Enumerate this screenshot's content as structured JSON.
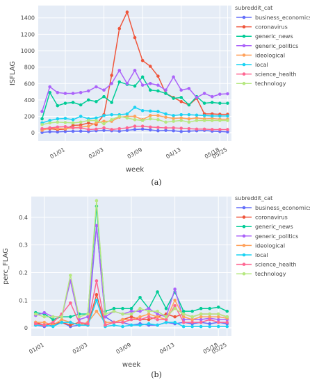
{
  "chart_data": [
    {
      "type": "line",
      "panel_label": "(a)",
      "xlabel": "week",
      "ylabel": "ISFLAG",
      "ylim": [
        -100,
        1550
      ],
      "yticks": [
        0,
        200,
        400,
        600,
        800,
        1000,
        1200,
        1400
      ],
      "x_tick_labels": [
        "01/01",
        "02/03",
        "03/09",
        "04/13",
        "05/18",
        "05/25"
      ],
      "x_tick_positions": [
        3,
        8,
        13,
        18,
        23,
        24
      ],
      "x_range": [
        -0.5,
        24.5
      ],
      "legend_title": "subreddit_cat",
      "legend_position": "right",
      "grid": true,
      "series": [
        {
          "name": "business_economics",
          "color": "#636efa",
          "values": [
            5,
            12,
            10,
            15,
            18,
            20,
            15,
            25,
            30,
            25,
            20,
            30,
            40,
            45,
            35,
            25,
            30,
            25,
            15,
            20,
            25,
            30,
            20,
            15,
            10
          ]
        },
        {
          "name": "coronavirus",
          "color": "#ef553b",
          "values": [
            40,
            50,
            40,
            45,
            90,
            95,
            120,
            100,
            220,
            700,
            1270,
            1470,
            1160,
            880,
            810,
            690,
            480,
            430,
            380,
            340,
            420,
            230,
            230,
            225,
            225
          ]
        },
        {
          "name": "generic_news",
          "color": "#00cc96",
          "values": [
            170,
            490,
            330,
            360,
            370,
            340,
            400,
            380,
            440,
            370,
            620,
            590,
            570,
            680,
            520,
            510,
            480,
            420,
            430,
            340,
            440,
            360,
            370,
            360,
            360
          ]
        },
        {
          "name": "generic_politics",
          "color": "#ab63fa",
          "values": [
            260,
            560,
            490,
            480,
            480,
            490,
            510,
            560,
            520,
            600,
            760,
            600,
            760,
            580,
            600,
            580,
            520,
            680,
            520,
            540,
            430,
            480,
            440,
            470,
            475
          ]
        },
        {
          "name": "ideological",
          "color": "#ffa15a",
          "values": [
            30,
            60,
            50,
            50,
            60,
            70,
            80,
            120,
            140,
            140,
            190,
            200,
            200,
            160,
            210,
            210,
            190,
            175,
            180,
            170,
            180,
            170,
            175,
            165,
            165
          ]
        },
        {
          "name": "local",
          "color": "#19d3f3",
          "values": [
            120,
            150,
            170,
            175,
            160,
            200,
            170,
            180,
            210,
            220,
            220,
            230,
            310,
            270,
            265,
            260,
            230,
            210,
            220,
            220,
            215,
            210,
            205,
            205,
            205
          ]
        },
        {
          "name": "science_health",
          "color": "#ff6692",
          "values": [
            50,
            60,
            70,
            75,
            60,
            60,
            40,
            45,
            60,
            40,
            50,
            60,
            80,
            80,
            70,
            65,
            60,
            60,
            55,
            50,
            45,
            45,
            40,
            40,
            40
          ]
        },
        {
          "name": "technology",
          "color": "#b6e880",
          "values": [
            100,
            120,
            130,
            125,
            120,
            130,
            150,
            150,
            110,
            160,
            200,
            180,
            160,
            150,
            170,
            160,
            130,
            140,
            150,
            130,
            150,
            150,
            150,
            150,
            150
          ]
        }
      ]
    },
    {
      "type": "line",
      "panel_label": "(b)",
      "xlabel": "week",
      "ylabel": "perc_FLAG",
      "ylim": [
        -0.03,
        0.475
      ],
      "yticks": [
        0,
        0.1,
        0.2,
        0.3,
        0.4
      ],
      "x_tick_labels": [
        "01/01",
        "02/03",
        "03/09",
        "04/13",
        "05/18",
        "05/25"
      ],
      "x_tick_positions": [
        1,
        6,
        11,
        16,
        21,
        22
      ],
      "x_range": [
        -0.5,
        22.5
      ],
      "legend_title": "subreddit_cat",
      "legend_position": "right",
      "grid": true,
      "series": [
        {
          "name": "business_economics",
          "color": "#636efa",
          "values": [
            0.01,
            0.005,
            0.01,
            0.02,
            0.005,
            0.01,
            0.01,
            0.37,
            0.04,
            0.02,
            0.02,
            0.01,
            0.015,
            0.01,
            0.01,
            0.02,
            0.015,
            0.02,
            0.015,
            0.02,
            0.015,
            0.02,
            0.015
          ]
        },
        {
          "name": "coronavirus",
          "color": "#ef553b",
          "values": [
            0.02,
            0.01,
            0.015,
            0.02,
            0.01,
            0.02,
            0.01,
            0.12,
            0.01,
            0.02,
            0.03,
            0.04,
            0.03,
            0.03,
            0.04,
            0.05,
            0.04,
            0.05,
            0.04,
            0.05,
            0.05,
            0.05,
            0.04
          ]
        },
        {
          "name": "generic_news",
          "color": "#00cc96",
          "values": [
            0.055,
            0.05,
            0.03,
            0.04,
            0.04,
            0.05,
            0.05,
            0.44,
            0.06,
            0.07,
            0.07,
            0.07,
            0.11,
            0.07,
            0.13,
            0.07,
            0.13,
            0.06,
            0.06,
            0.07,
            0.07,
            0.075,
            0.06
          ]
        },
        {
          "name": "generic_politics",
          "color": "#ab63fa",
          "values": [
            0.045,
            0.055,
            0.04,
            0.04,
            0.17,
            0.03,
            0.04,
            0.37,
            0.04,
            0.06,
            0.05,
            0.06,
            0.06,
            0.07,
            0.05,
            0.04,
            0.14,
            0.03,
            0.03,
            0.03,
            0.035,
            0.03,
            0.03
          ]
        },
        {
          "name": "ideological",
          "color": "#ffa15a",
          "values": [
            0.02,
            0.02,
            0.01,
            0.03,
            0.02,
            0.01,
            0.02,
            0.06,
            0.02,
            0.02,
            0.03,
            0.03,
            0.04,
            0.05,
            0.04,
            0.03,
            0.1,
            0.04,
            0.03,
            0.04,
            0.04,
            0.04,
            0.035
          ]
        },
        {
          "name": "local",
          "color": "#19d3f3",
          "values": [
            0.01,
            0.01,
            0.005,
            0.02,
            0.02,
            0.01,
            0.01,
            0.1,
            0.005,
            0.01,
            0.005,
            0.01,
            0.01,
            0.015,
            0.01,
            0.02,
            0.02,
            0.005,
            0.005,
            0.005,
            0.005,
            0.005,
            0.005
          ]
        },
        {
          "name": "science_health",
          "color": "#ff6692",
          "values": [
            0.015,
            0.01,
            0.02,
            0.05,
            0.09,
            0.02,
            0.015,
            0.17,
            0.01,
            0.02,
            0.02,
            0.03,
            0.03,
            0.04,
            0.03,
            0.03,
            0.08,
            0.02,
            0.02,
            0.02,
            0.03,
            0.02,
            0.02
          ]
        },
        {
          "name": "technology",
          "color": "#b6e880",
          "values": [
            0.05,
            0.04,
            0.04,
            0.04,
            0.19,
            0.04,
            0.05,
            0.46,
            0.05,
            0.06,
            0.05,
            0.05,
            0.07,
            0.06,
            0.06,
            0.04,
            0.07,
            0.05,
            0.04,
            0.05,
            0.05,
            0.05,
            0.04
          ]
        }
      ]
    }
  ]
}
